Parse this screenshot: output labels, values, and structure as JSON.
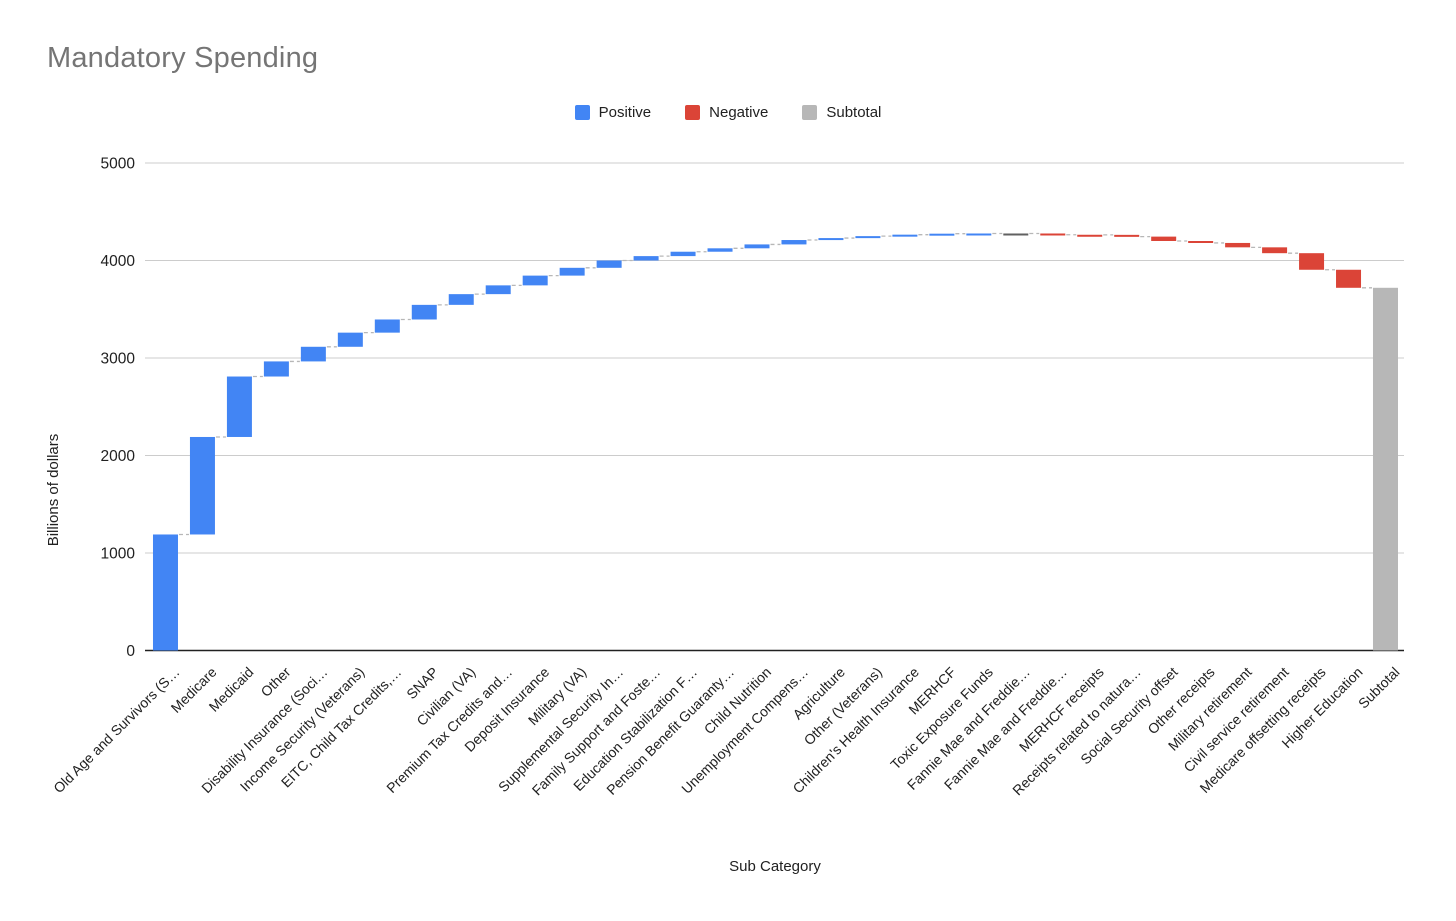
{
  "title": "Mandatory Spending",
  "legend": {
    "items": [
      {
        "label": "Positive",
        "color": "#4285F4"
      },
      {
        "label": "Negative",
        "color": "#DB4437"
      },
      {
        "label": "Subtotal",
        "color": "#B7B7B7"
      }
    ]
  },
  "chart_data": {
    "type": "waterfall",
    "title": "Mandatory Spending",
    "xlabel": "Sub Category",
    "ylabel": "Billions of dollars",
    "ylim": [
      0,
      5000
    ],
    "yticks": [
      0,
      1000,
      2000,
      3000,
      4000,
      5000
    ],
    "grid": true,
    "legend_position": "top",
    "legend": [
      "Positive",
      "Negative",
      "Subtotal"
    ],
    "colors": {
      "positive": "#4285F4",
      "negative": "#DB4437",
      "subtotal": "#B7B7B7",
      "zero": "#616161",
      "connector": "#b7b7b7",
      "gridline": "#cccccc",
      "baseline": "#212121"
    },
    "items": [
      {
        "label": "Old Age and Survivors (S…",
        "value": 1190,
        "kind": "positive"
      },
      {
        "label": "Medicare",
        "value": 1000,
        "kind": "positive"
      },
      {
        "label": "Medicaid",
        "value": 620,
        "kind": "positive"
      },
      {
        "label": "Other",
        "value": 155,
        "kind": "positive"
      },
      {
        "label": "Disability Insurance (Soci…",
        "value": 150,
        "kind": "positive"
      },
      {
        "label": "Income Security (Veterans)",
        "value": 145,
        "kind": "positive"
      },
      {
        "label": "EITC, Child Tax Credits,…",
        "value": 135,
        "kind": "positive"
      },
      {
        "label": "SNAP",
        "value": 150,
        "kind": "positive"
      },
      {
        "label": "Civilian (VA)",
        "value": 110,
        "kind": "positive"
      },
      {
        "label": "Premium Tax Credits and…",
        "value": 90,
        "kind": "positive"
      },
      {
        "label": "Deposit Insurance",
        "value": 100,
        "kind": "positive"
      },
      {
        "label": "Military (VA)",
        "value": 80,
        "kind": "positive"
      },
      {
        "label": "Supplemental Security In…",
        "value": 75,
        "kind": "positive"
      },
      {
        "label": "Family Support and Foste…",
        "value": 45,
        "kind": "positive"
      },
      {
        "label": "Education Stabilization F…",
        "value": 45,
        "kind": "positive"
      },
      {
        "label": "Pension Benefit Guaranty…",
        "value": 35,
        "kind": "positive"
      },
      {
        "label": "Child Nutrition",
        "value": 40,
        "kind": "positive"
      },
      {
        "label": "Unemployment Compens…",
        "value": 45,
        "kind": "positive"
      },
      {
        "label": "Agriculture",
        "value": 20,
        "kind": "positive"
      },
      {
        "label": "Other (Veterans)",
        "value": 20,
        "kind": "positive"
      },
      {
        "label": "Children's Health Insurance",
        "value": 15,
        "kind": "positive"
      },
      {
        "label": "MERHCF",
        "value": 10,
        "kind": "positive"
      },
      {
        "label": "Toxic Exposure Funds",
        "value": 2,
        "kind": "positive"
      },
      {
        "label": "Fannie Mae and Freddie…",
        "value": 0,
        "kind": "zero"
      },
      {
        "label": "Fannie Mae and Freddie…",
        "value": -13,
        "kind": "negative"
      },
      {
        "label": "MERHCF receipts",
        "value": -1,
        "kind": "negative"
      },
      {
        "label": "Receipts related to natura…",
        "value": -18,
        "kind": "negative"
      },
      {
        "label": "Social Security offset",
        "value": -45,
        "kind": "negative"
      },
      {
        "label": "Other receipts",
        "value": -20,
        "kind": "negative"
      },
      {
        "label": "Military retirement",
        "value": -45,
        "kind": "negative"
      },
      {
        "label": "Civil service retirement",
        "value": -60,
        "kind": "negative"
      },
      {
        "label": "Medicare offsetting receipts",
        "value": -170,
        "kind": "negative"
      },
      {
        "label": "Higher Education",
        "value": -185,
        "kind": "negative"
      },
      {
        "label": "Subtotal",
        "value": 3720,
        "kind": "subtotal"
      }
    ]
  }
}
